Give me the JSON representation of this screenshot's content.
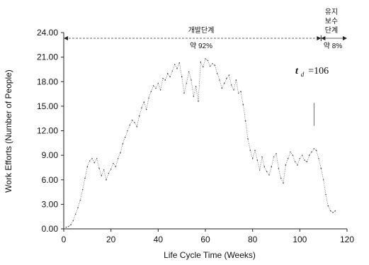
{
  "chart_data": {
    "type": "line",
    "xlabel": "Life Cycle Time (Weeks)",
    "ylabel": "Work Efforts (Number of People)",
    "xlim": [
      0,
      120
    ],
    "ylim": [
      0,
      24
    ],
    "x_ticks": [
      "0",
      "20",
      "40",
      "60",
      "80",
      "100",
      "120"
    ],
    "y_ticks": [
      "0.00",
      "3.00",
      "6.00",
      "9.00",
      "12.00",
      "15.00",
      "18.00",
      "21.00",
      "24.00"
    ],
    "grid": false,
    "legend": "none",
    "phase_development": {
      "label": "개발단계",
      "share": "약 92%",
      "x_start": 0,
      "x_end": 109
    },
    "phase_maintenance": {
      "label_lines": [
        "유지",
        "보수",
        "단계"
      ],
      "share": "약 8%",
      "x_start": 109,
      "x_end": 120
    },
    "td_annotation": {
      "symbol": "t",
      "subscript": "d",
      "text": "=106",
      "x": 106
    },
    "series": [
      {
        "x": [
          1,
          2,
          3,
          4,
          5,
          6,
          7,
          8,
          9,
          10,
          11,
          12,
          13,
          14,
          15,
          16,
          17,
          18,
          19,
          20,
          21,
          22,
          23,
          24,
          25,
          26,
          27,
          28,
          29,
          30,
          31,
          32,
          33,
          34,
          35,
          36,
          37,
          38,
          39,
          40,
          41,
          42,
          43,
          44,
          45,
          46,
          47,
          48,
          49,
          50,
          51,
          52,
          53,
          54,
          55,
          56,
          57,
          58,
          59,
          60,
          61,
          62,
          63,
          64,
          65,
          66,
          67,
          68,
          69,
          70,
          71,
          72,
          73,
          74,
          75,
          76,
          77,
          78,
          79,
          80,
          81,
          82,
          83,
          84,
          85,
          86,
          87,
          88,
          89,
          90,
          91,
          92,
          93,
          94,
          95,
          96,
          97,
          98,
          99,
          100,
          101,
          102,
          103,
          104,
          105,
          106,
          107,
          108,
          109,
          110,
          111,
          112,
          113,
          114,
          115
        ],
        "values": [
          0.2,
          0.3,
          0.5,
          1.0,
          1.8,
          2.6,
          3.5,
          4.8,
          6.2,
          7.6,
          8.3,
          8.6,
          8.1,
          8.6,
          7.4,
          6.5,
          7.2,
          6.0,
          6.8,
          7.3,
          8.0,
          7.6,
          8.6,
          9.3,
          10.4,
          11.2,
          12.0,
          12.7,
          13.3,
          13.0,
          12.5,
          13.8,
          14.8,
          15.5,
          14.6,
          16.0,
          16.8,
          17.5,
          17.2,
          17.8,
          17.0,
          18.4,
          18.2,
          19.0,
          18.6,
          19.3,
          20.1,
          19.6,
          20.3,
          18.6,
          16.6,
          17.8,
          19.2,
          18.2,
          16.2,
          17.4,
          15.6,
          20.4,
          19.8,
          20.8,
          20.6,
          19.9,
          20.2,
          20.0,
          19.0,
          18.2,
          17.2,
          17.8,
          18.4,
          18.8,
          17.6,
          17.0,
          18.2,
          16.6,
          16.8,
          15.2,
          13.2,
          11.0,
          9.6,
          8.6,
          9.6,
          8.4,
          7.2,
          8.8,
          7.6,
          7.0,
          6.6,
          7.6,
          8.8,
          9.2,
          7.4,
          6.2,
          5.6,
          7.8,
          8.6,
          9.4,
          9.0,
          8.2,
          7.8,
          8.6,
          9.0,
          8.4,
          8.2,
          9.0,
          9.4,
          9.8,
          9.6,
          8.6,
          7.4,
          6.0,
          4.2,
          2.8,
          2.2,
          2.0,
          2.2
        ]
      }
    ]
  }
}
